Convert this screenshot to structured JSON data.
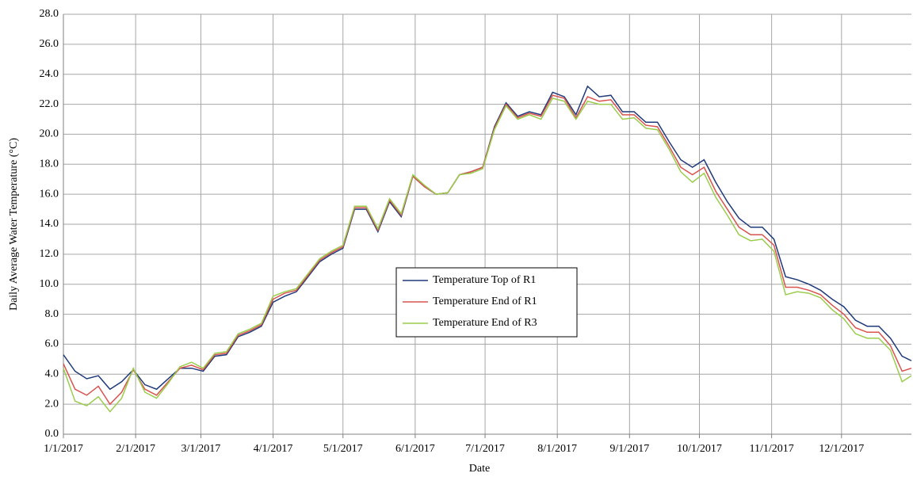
{
  "chart_data": {
    "type": "line",
    "x_label": "Date",
    "y_label": "Daily Average Water Temperature (°C)",
    "x": [
      "1/1/2017",
      "1/6/2017",
      "1/11/2017",
      "1/16/2017",
      "1/21/2017",
      "1/26/2017",
      "1/31/2017",
      "2/5/2017",
      "2/10/2017",
      "2/15/2017",
      "2/20/2017",
      "2/25/2017",
      "3/2/2017",
      "3/7/2017",
      "3/12/2017",
      "3/17/2017",
      "3/22/2017",
      "3/27/2017",
      "4/1/2017",
      "4/6/2017",
      "4/11/2017",
      "4/16/2017",
      "4/21/2017",
      "4/26/2017",
      "5/1/2017",
      "5/6/2017",
      "5/11/2017",
      "5/16/2017",
      "5/21/2017",
      "5/26/2017",
      "5/31/2017",
      "6/5/2017",
      "6/10/2017",
      "6/15/2017",
      "6/20/2017",
      "6/25/2017",
      "6/30/2017",
      "7/5/2017",
      "7/10/2017",
      "7/15/2017",
      "7/20/2017",
      "7/25/2017",
      "7/30/2017",
      "8/4/2017",
      "8/9/2017",
      "8/14/2017",
      "8/19/2017",
      "8/24/2017",
      "8/29/2017",
      "9/3/2017",
      "9/8/2017",
      "9/13/2017",
      "9/18/2017",
      "9/23/2017",
      "9/28/2017",
      "10/3/2017",
      "10/8/2017",
      "10/13/2017",
      "10/18/2017",
      "10/23/2017",
      "10/28/2017",
      "11/2/2017",
      "11/7/2017",
      "11/12/2017",
      "11/17/2017",
      "11/22/2017",
      "11/27/2017",
      "12/2/2017",
      "12/7/2017",
      "12/12/2017",
      "12/17/2017",
      "12/22/2017",
      "12/27/2017",
      "12/31/2017"
    ],
    "series": [
      {
        "name": "Temperature Top of R1",
        "color": "#1f3a7a",
        "values": [
          5.3,
          4.2,
          3.7,
          3.9,
          3.0,
          3.5,
          4.3,
          3.3,
          3.0,
          3.7,
          4.4,
          4.4,
          4.2,
          5.2,
          5.3,
          6.5,
          6.8,
          7.2,
          8.8,
          9.2,
          9.5,
          10.5,
          11.5,
          12.0,
          12.4,
          15.0,
          15.0,
          13.5,
          15.5,
          14.5,
          17.2,
          16.5,
          16.0,
          16.1,
          17.3,
          17.5,
          17.8,
          20.5,
          22.1,
          21.2,
          21.5,
          21.3,
          22.8,
          22.5,
          21.3,
          23.2,
          22.5,
          22.6,
          21.5,
          21.5,
          20.8,
          20.8,
          19.5,
          18.3,
          17.8,
          18.3,
          16.8,
          15.5,
          14.4,
          13.8,
          13.8,
          13.0,
          10.5,
          10.3,
          10.0,
          9.6,
          9.0,
          8.5,
          7.6,
          7.2,
          7.2,
          6.4,
          5.2,
          4.9
        ]
      },
      {
        "name": "Temperature End of R1",
        "color": "#d9534f",
        "values": [
          4.7,
          3.0,
          2.6,
          3.2,
          2.0,
          2.8,
          4.3,
          3.0,
          2.6,
          3.5,
          4.4,
          4.6,
          4.3,
          5.3,
          5.4,
          6.6,
          6.9,
          7.3,
          9.0,
          9.4,
          9.6,
          10.6,
          11.6,
          12.1,
          12.5,
          15.1,
          15.1,
          13.6,
          15.6,
          14.6,
          17.2,
          16.5,
          16.0,
          16.1,
          17.3,
          17.5,
          17.8,
          20.4,
          22.0,
          21.1,
          21.4,
          21.2,
          22.6,
          22.4,
          21.1,
          22.5,
          22.2,
          22.3,
          21.3,
          21.3,
          20.6,
          20.5,
          19.2,
          17.8,
          17.3,
          17.8,
          16.2,
          15.0,
          13.8,
          13.3,
          13.3,
          12.6,
          9.8,
          9.8,
          9.6,
          9.3,
          8.6,
          8.0,
          7.1,
          6.8,
          6.8,
          5.9,
          4.2,
          4.4
        ]
      },
      {
        "name": "Temperature End of R3",
        "color": "#9acd4c",
        "values": [
          4.4,
          2.2,
          1.9,
          2.5,
          1.5,
          2.4,
          4.4,
          2.8,
          2.4,
          3.4,
          4.5,
          4.8,
          4.4,
          5.4,
          5.5,
          6.7,
          7.0,
          7.4,
          9.2,
          9.5,
          9.7,
          10.7,
          11.7,
          12.2,
          12.6,
          15.2,
          15.2,
          13.7,
          15.7,
          14.7,
          17.3,
          16.6,
          16.0,
          16.1,
          17.3,
          17.4,
          17.7,
          20.3,
          21.9,
          21.0,
          21.3,
          21.0,
          22.4,
          22.2,
          21.0,
          22.2,
          22.0,
          22.0,
          21.0,
          21.1,
          20.4,
          20.3,
          19.0,
          17.5,
          16.8,
          17.4,
          15.8,
          14.6,
          13.3,
          12.9,
          13.0,
          12.2,
          9.3,
          9.5,
          9.4,
          9.1,
          8.3,
          7.7,
          6.7,
          6.4,
          6.4,
          5.6,
          3.5,
          3.9
        ]
      }
    ],
    "xlim": [
      "1/1/2017",
      "12/31/2017"
    ],
    "xticks": [
      "1/1/2017",
      "2/1/2017",
      "3/1/2017",
      "4/1/2017",
      "5/1/2017",
      "6/1/2017",
      "7/1/2017",
      "8/1/2017",
      "9/1/2017",
      "10/1/2017",
      "11/1/2017",
      "12/1/2017"
    ],
    "ylim": [
      0,
      28
    ],
    "yticks": [
      {
        "value": 0,
        "label": "0.0"
      },
      {
        "value": 2,
        "label": "2.0"
      },
      {
        "value": 4,
        "label": "4.0"
      },
      {
        "value": 6,
        "label": "6.0"
      },
      {
        "value": 8,
        "label": "8.0"
      },
      {
        "value": 10,
        "label": "10.0"
      },
      {
        "value": 12,
        "label": "12.0"
      },
      {
        "value": 14,
        "label": "14.0"
      },
      {
        "value": 16,
        "label": "16.0"
      },
      {
        "value": 18,
        "label": "18.0"
      },
      {
        "value": 20,
        "label": "20.0"
      },
      {
        "value": 22,
        "label": "22.0"
      },
      {
        "value": 24,
        "label": "24.0"
      },
      {
        "value": 26,
        "label": "26.0"
      },
      {
        "value": 28,
        "label": "28.0"
      }
    ],
    "grid": true,
    "legend": "center"
  }
}
